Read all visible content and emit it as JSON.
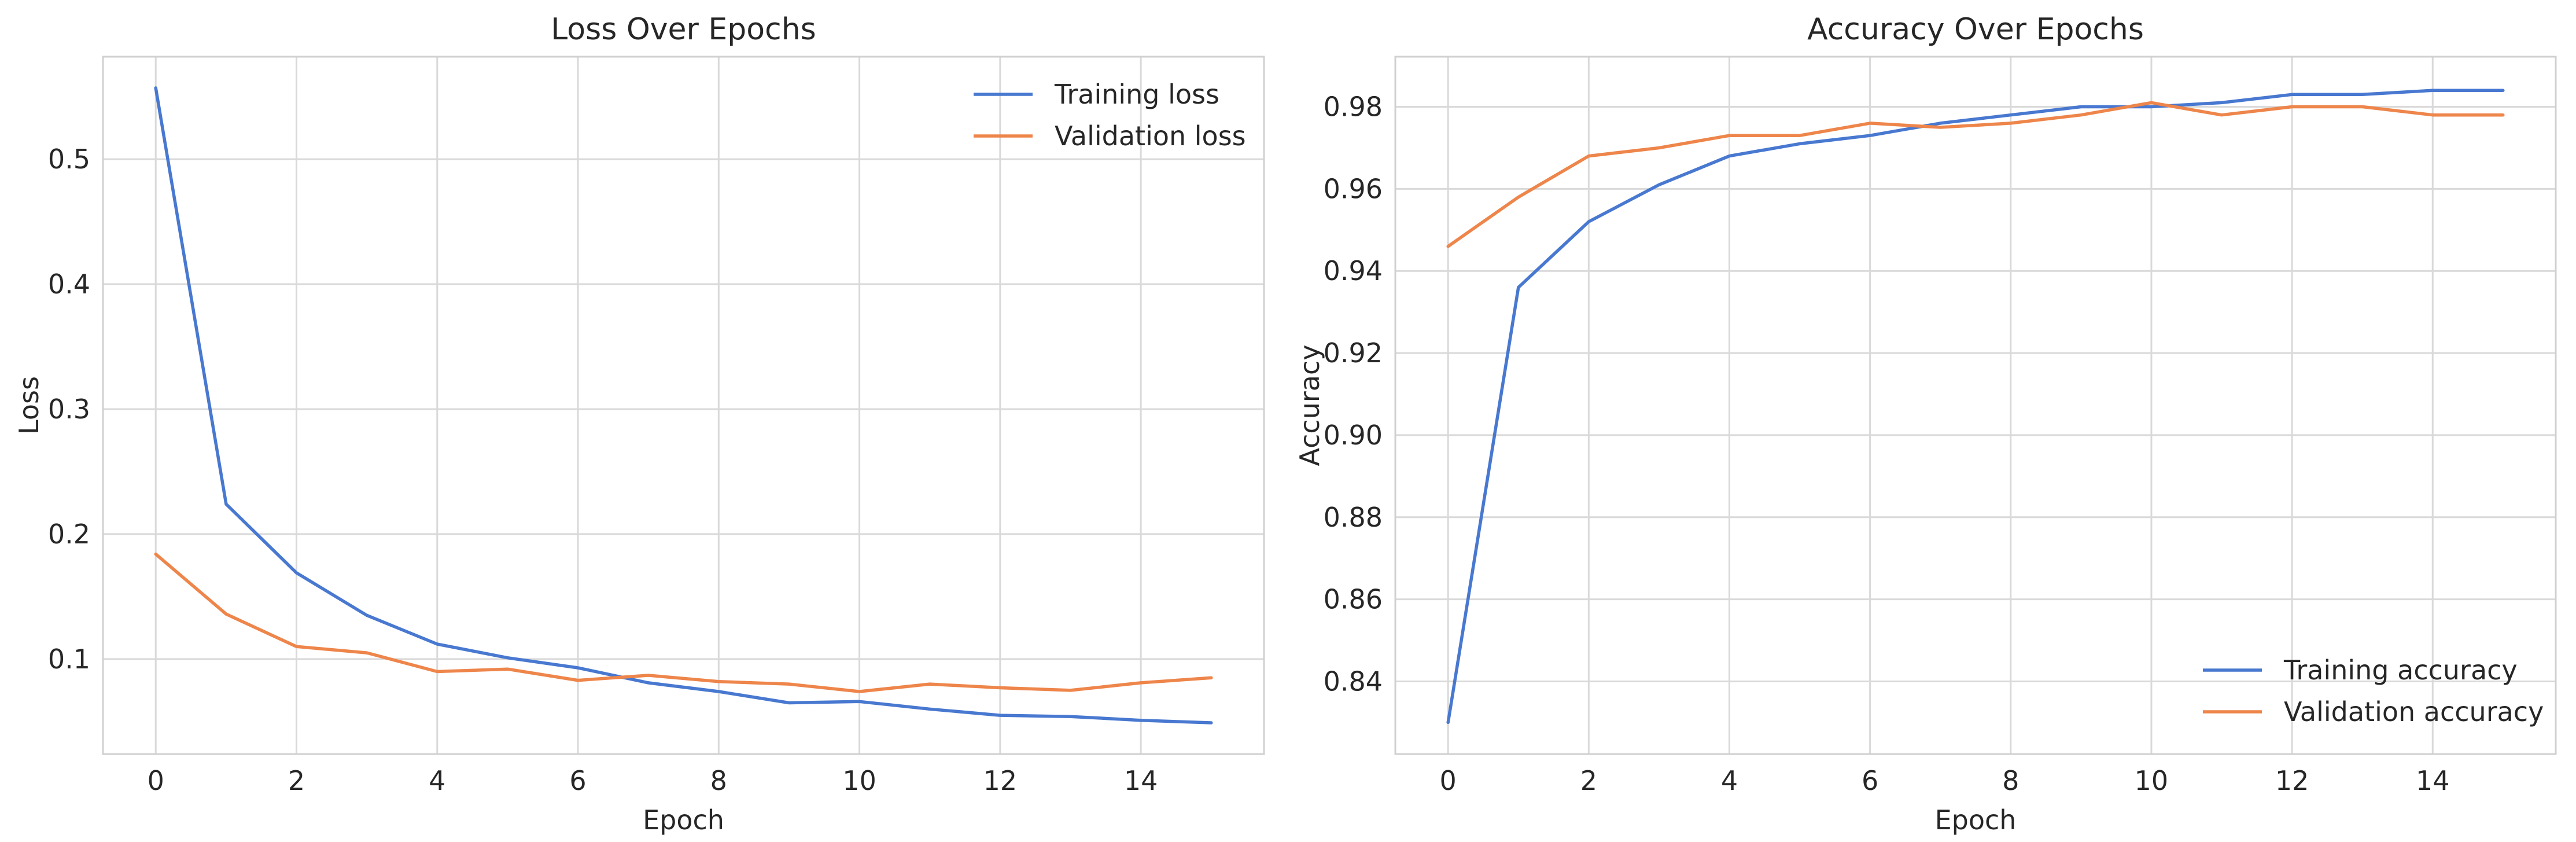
{
  "chart_data": [
    {
      "type": "line",
      "title": "Loss Over Epochs",
      "xlabel": "Epoch",
      "ylabel": "Loss",
      "xlim": [
        -0.75,
        15.75
      ],
      "ylim": [
        0.024,
        0.582
      ],
      "xticks": [
        0,
        2,
        4,
        6,
        8,
        10,
        12,
        14
      ],
      "yticks": [
        0.1,
        0.2,
        0.3,
        0.4,
        0.5
      ],
      "grid": true,
      "legend_position": "upper-right",
      "x": [
        0,
        1,
        2,
        3,
        4,
        5,
        6,
        7,
        8,
        9,
        10,
        11,
        12,
        13,
        14,
        15
      ],
      "series": [
        {
          "name": "Training loss",
          "color": "#4878d0",
          "values": [
            0.557,
            0.224,
            0.169,
            0.135,
            0.112,
            0.101,
            0.093,
            0.081,
            0.074,
            0.065,
            0.066,
            0.06,
            0.055,
            0.054,
            0.051,
            0.049
          ]
        },
        {
          "name": "Validation loss",
          "color": "#ee854a",
          "values": [
            0.184,
            0.136,
            0.11,
            0.105,
            0.09,
            0.092,
            0.083,
            0.087,
            0.082,
            0.08,
            0.074,
            0.08,
            0.077,
            0.075,
            0.081,
            0.085
          ]
        }
      ]
    },
    {
      "type": "line",
      "title": "Accuracy Over Epochs",
      "xlabel": "Epoch",
      "ylabel": "Accuracy",
      "xlim": [
        -0.75,
        15.75
      ],
      "ylim": [
        0.8223,
        0.9922
      ],
      "xticks": [
        0,
        2,
        4,
        6,
        8,
        10,
        12,
        14
      ],
      "yticks": [
        0.84,
        0.86,
        0.88,
        0.9,
        0.92,
        0.94,
        0.96,
        0.98
      ],
      "grid": true,
      "legend_position": "lower-right",
      "x": [
        0,
        1,
        2,
        3,
        4,
        5,
        6,
        7,
        8,
        9,
        10,
        11,
        12,
        13,
        14,
        15
      ],
      "series": [
        {
          "name": "Training accuracy",
          "color": "#4878d0",
          "values": [
            0.83,
            0.936,
            0.952,
            0.961,
            0.968,
            0.971,
            0.973,
            0.976,
            0.978,
            0.98,
            0.98,
            0.981,
            0.983,
            0.983,
            0.984,
            0.984
          ]
        },
        {
          "name": "Validation accuracy",
          "color": "#ee854a",
          "values": [
            0.946,
            0.958,
            0.968,
            0.97,
            0.973,
            0.973,
            0.976,
            0.975,
            0.976,
            0.978,
            0.981,
            0.978,
            0.98,
            0.98,
            0.978,
            0.978
          ]
        }
      ]
    }
  ]
}
